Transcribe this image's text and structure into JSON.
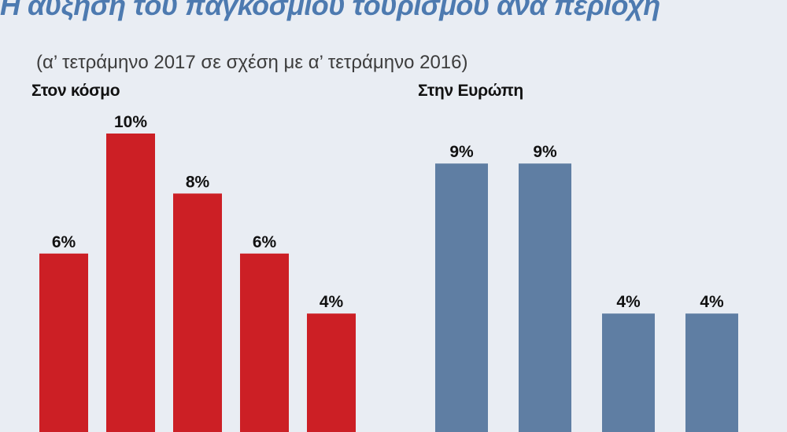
{
  "title": "Η αύξηση του παγκόσμιου τουρισμού ανά περιοχή",
  "subtitle": "(α’ τετράμηνο 2017 σε σχέση με α’ τετράμηνο 2016)",
  "colors": {
    "world": "#cc1f25",
    "europe": "#5f7ea3",
    "title": "#4d7ab0",
    "background": "#e9edf3"
  },
  "chart_data": [
    {
      "type": "bar",
      "title": "Στον κόσμο",
      "values": [
        6,
        10,
        8,
        6,
        4
      ],
      "labels": [
        "6%",
        "10%",
        "8%",
        "6%",
        "4%"
      ],
      "unit": "%",
      "color": "#cc1f25"
    },
    {
      "type": "bar",
      "title": "Στην Ευρώπη",
      "values": [
        9,
        9,
        4,
        4
      ],
      "labels": [
        "9%",
        "9%",
        "4%",
        "4%"
      ],
      "unit": "%",
      "color": "#5f7ea3"
    }
  ]
}
